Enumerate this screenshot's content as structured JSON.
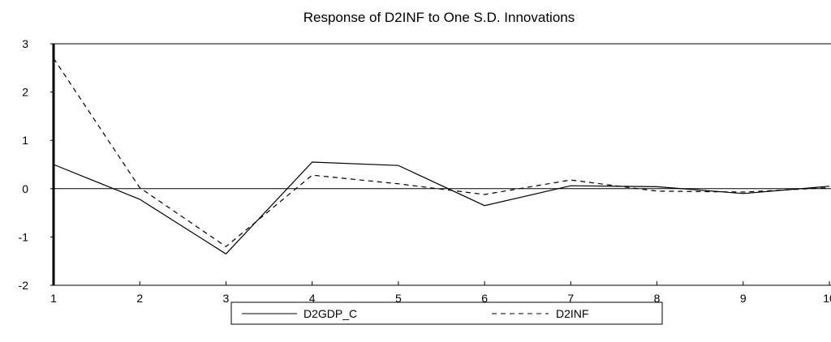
{
  "chart_data": {
    "type": "line",
    "title": "Response of D2INF to One S.D. Innovations",
    "xlabel": "",
    "ylabel": "",
    "x": [
      1,
      2,
      3,
      4,
      5,
      6,
      7,
      8,
      9,
      10
    ],
    "xlim": [
      1,
      10
    ],
    "ylim": [
      -2,
      3
    ],
    "yticks": [
      "3",
      "2",
      "1",
      "0",
      "-1",
      "-2"
    ],
    "xticks": [
      "1",
      "2",
      "3",
      "4",
      "5",
      "6",
      "7",
      "8",
      "9",
      "10"
    ],
    "series": [
      {
        "name": "D2GDP_C",
        "values": [
          0.5,
          -0.22,
          -1.35,
          0.55,
          0.48,
          -0.35,
          0.06,
          0.04,
          -0.1,
          0.05
        ],
        "style": "solid",
        "color": "#000000"
      },
      {
        "name": "D2INF",
        "values": [
          2.7,
          0.02,
          -1.2,
          0.28,
          0.1,
          -0.12,
          0.18,
          -0.05,
          -0.07,
          0.02
        ],
        "style": "dashed",
        "color": "#000000"
      }
    ],
    "legend_position": "bottom",
    "grid": false
  }
}
